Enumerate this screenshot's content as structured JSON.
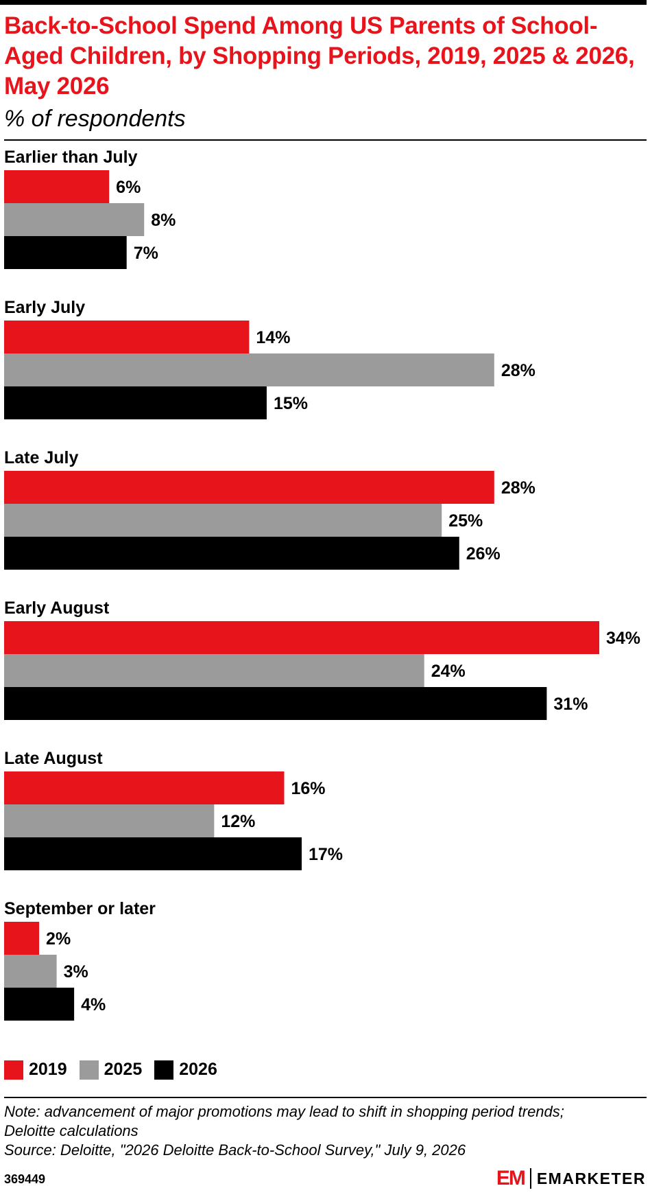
{
  "header": {
    "title": "Back-to-School Spend Among US Parents of School-Aged Children, by Shopping Periods, 2019, 2025 & 2026, May 2026",
    "subtitle": "% of respondents"
  },
  "chart_data": {
    "type": "bar",
    "orientation": "horizontal",
    "categories": [
      "Earlier than July",
      "Early July",
      "Late July",
      "Early August",
      "Late August",
      "September or later"
    ],
    "series": [
      {
        "name": "2019",
        "color": "#e8141c",
        "values": [
          6,
          14,
          28,
          34,
          16,
          2
        ]
      },
      {
        "name": "2025",
        "color": "#9b9b9b",
        "values": [
          8,
          28,
          25,
          24,
          12,
          3
        ]
      },
      {
        "name": "2026",
        "color": "#000000",
        "values": [
          7,
          15,
          26,
          31,
          17,
          4
        ]
      }
    ],
    "value_suffix": "%",
    "xlim": [
      0,
      34
    ],
    "grid": false,
    "legend_position": "bottom-left"
  },
  "legend": {
    "items": [
      {
        "label": "2019",
        "color": "#e8141c"
      },
      {
        "label": "2025",
        "color": "#9b9b9b"
      },
      {
        "label": "2026",
        "color": "#000000"
      }
    ]
  },
  "footer": {
    "note_line1": "Note: advancement of major promotions may lead to shift in shopping period trends;",
    "note_line2": "Deloitte calculations",
    "source": "Source: Deloitte, \"2026 Deloitte Back-to-School Survey,\" July 9, 2026",
    "chart_id": "369449",
    "logo_mark": "EM",
    "logo_text": "EMARKETER"
  }
}
